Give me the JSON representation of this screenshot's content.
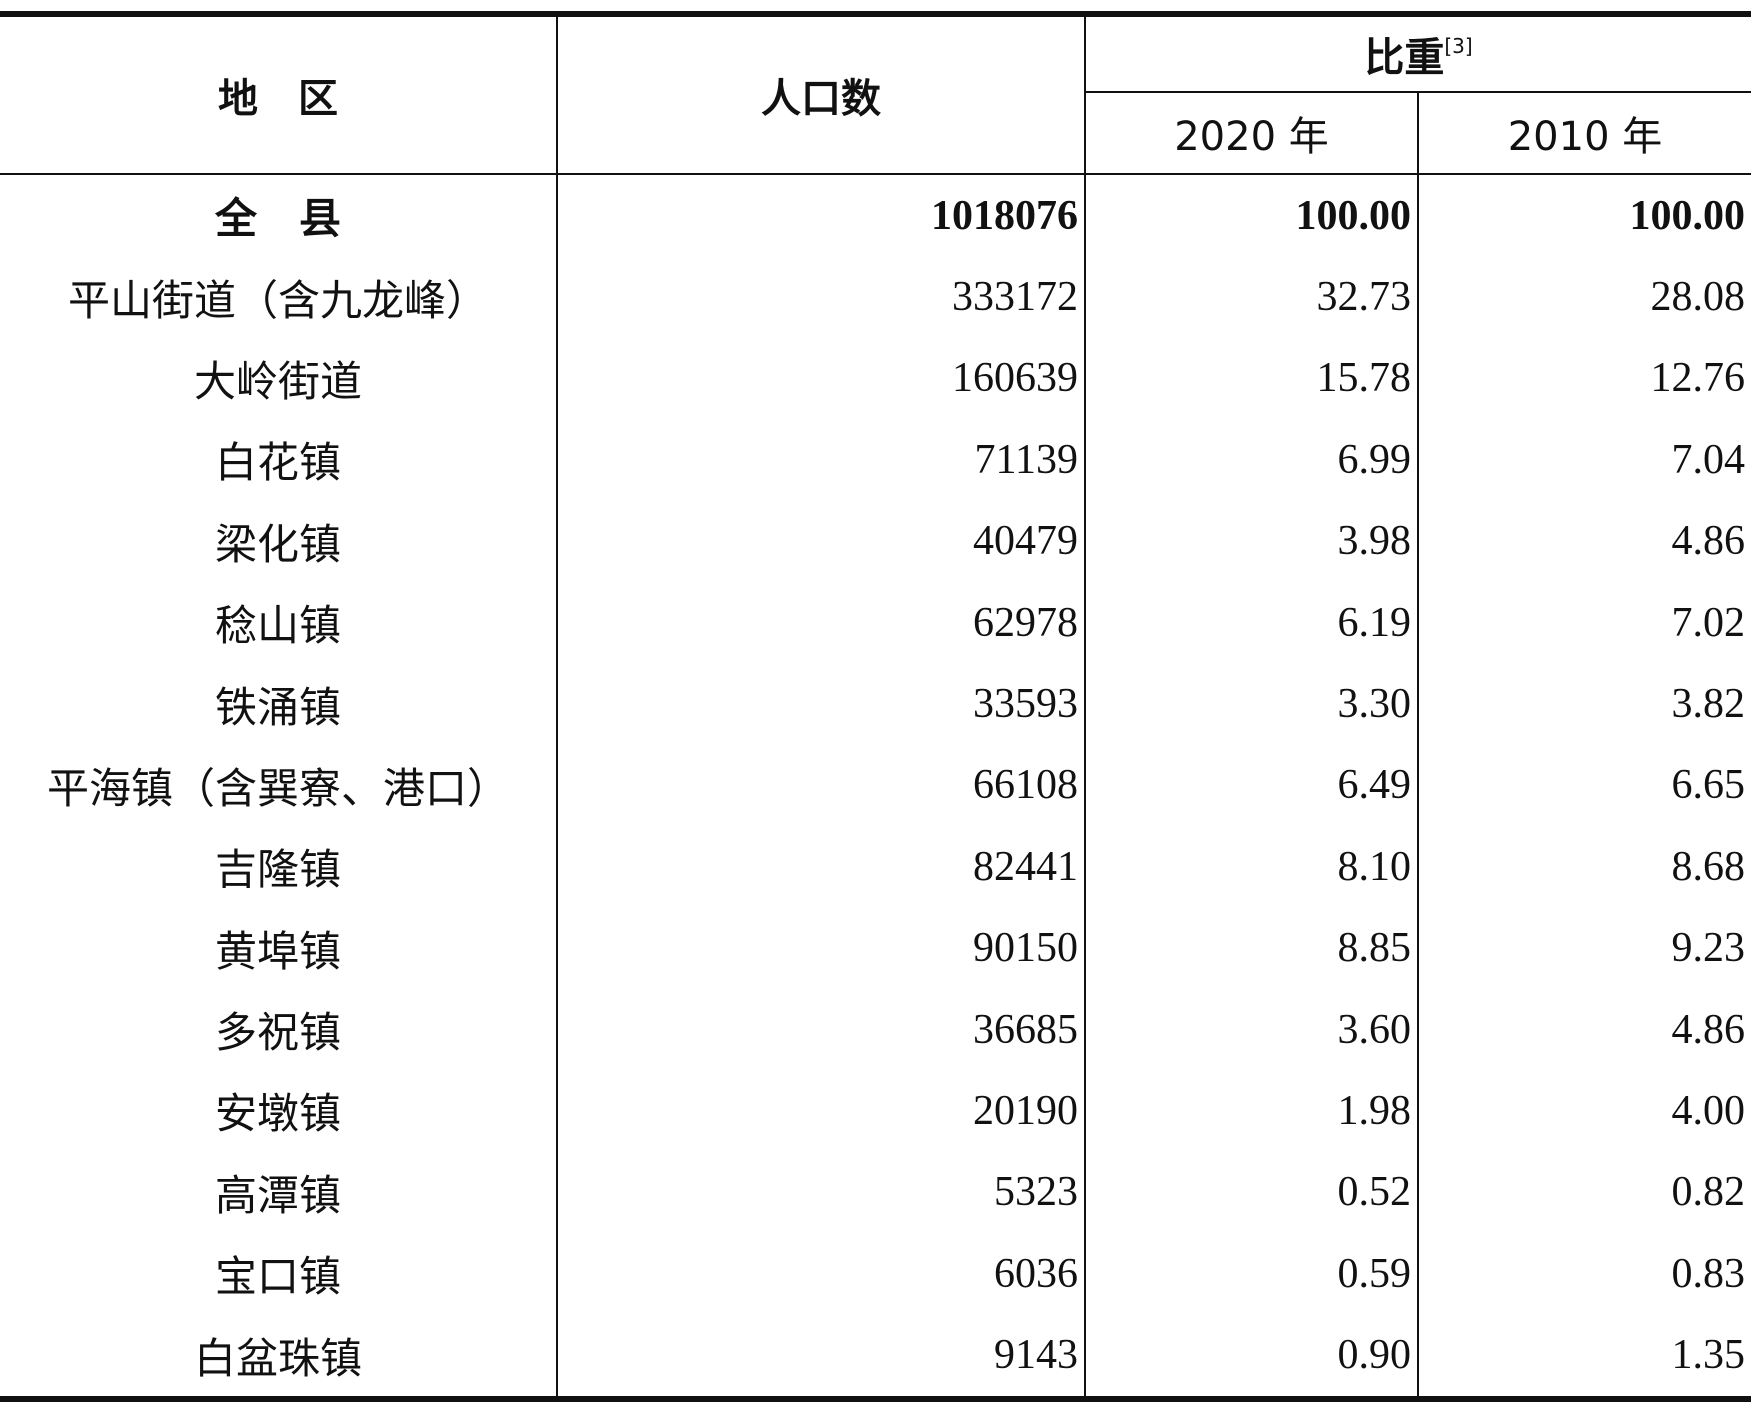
{
  "table": {
    "header": {
      "region": "地　区",
      "population": "人口数",
      "share": "比重",
      "share_note": "[3]",
      "year_2020": "2020 年",
      "year_2010": "2010 年"
    },
    "rows": [
      [
        "全　县",
        "1018076",
        "100.00",
        "100.00"
      ],
      [
        "平山街道（含九龙峰）",
        "333172",
        "32.73",
        "28.08"
      ],
      [
        "大岭街道",
        "160639",
        "15.78",
        "12.76"
      ],
      [
        "白花镇",
        "71139",
        "6.99",
        "7.04"
      ],
      [
        "梁化镇",
        "40479",
        "3.98",
        "4.86"
      ],
      [
        "稔山镇",
        "62978",
        "6.19",
        "7.02"
      ],
      [
        "铁涌镇",
        "33593",
        "3.30",
        "3.82"
      ],
      [
        "平海镇（含巽寮、港口）",
        "66108",
        "6.49",
        "6.65"
      ],
      [
        "吉隆镇",
        "82441",
        "8.10",
        "8.68"
      ],
      [
        "黄埠镇",
        "90150",
        "8.85",
        "9.23"
      ],
      [
        "多祝镇",
        "36685",
        "3.60",
        "4.86"
      ],
      [
        "安墩镇",
        "20190",
        "1.98",
        "4.00"
      ],
      [
        "高潭镇",
        "5323",
        "0.52",
        "0.82"
      ],
      [
        "宝口镇",
        "6036",
        "0.59",
        "0.83"
      ],
      [
        "白盆珠镇",
        "9143",
        "0.90",
        "1.35"
      ]
    ]
  }
}
